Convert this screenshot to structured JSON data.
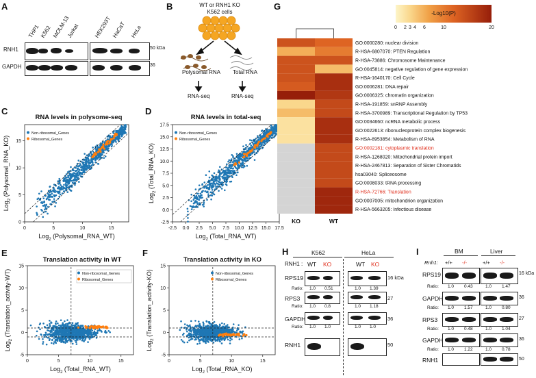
{
  "panels": {
    "A": {
      "letter": "A",
      "lanes": [
        "THP1",
        "K562",
        "MOLM-13",
        "Jurkat",
        "HEK293T",
        "HaCaT",
        "HeLa"
      ],
      "row1": "RNH1",
      "row2": "GAPDH",
      "mw1": "50 kDa",
      "mw2": "36"
    },
    "B": {
      "letter": "B",
      "line1": "WT or RNH1 KO",
      "line2": "K562 cells",
      "left": "Polysomal RNA",
      "right": "Total RNA",
      "seq": "RNA-seq"
    },
    "C": {
      "letter": "C",
      "title": "RNA levels in polysome-seq",
      "xlabel": "Log2 (Polysomal_RNA_WT)",
      "ylabel": "Log2 (Polysomal_RNA_KO)",
      "ticks": [
        "0",
        "5",
        "10",
        "15"
      ]
    },
    "D": {
      "letter": "D",
      "title": "RNA levels in total-seq",
      "xlabel": "Log2 (Total_RNA_WT)",
      "ylabel": "Log2 (Total_RNA_KO)",
      "ticks": [
        "-2.5",
        "0.0",
        "2.5",
        "5.0",
        "7.5",
        "10.0",
        "12.5",
        "15.0",
        "17.5"
      ]
    },
    "E": {
      "letter": "E",
      "title": "Translation activity in WT",
      "xlabel": "Log2 (Total_RNA_WT)",
      "ylabel": "Log2 (Translation_activity-WT)",
      "xticks": [
        "0",
        "5",
        "10",
        "15"
      ],
      "yticks": [
        "-5",
        "0",
        "5",
        "10",
        "15"
      ]
    },
    "F": {
      "letter": "F",
      "title": "Translation activity in KO",
      "xlabel": "Log2 (Total_RNA_KO)",
      "ylabel": "Log2 (Translation_activity-KO)",
      "xticks": [
        "0",
        "5",
        "10",
        "15"
      ],
      "yticks": [
        "-5",
        "0",
        "5",
        "10",
        "15"
      ]
    },
    "G": {
      "letter": "G",
      "legend_title": "-Log10(P)",
      "legend_ticks": [
        "0",
        "2",
        "3",
        "4",
        "6",
        "10",
        "20"
      ],
      "col_ko": "KO",
      "col_wt": "WT"
    },
    "H": {
      "letter": "H",
      "cell1": "K562",
      "cell2": "HeLa",
      "prefix": "RNH1 :",
      "wt": "WT",
      "ko": "KO",
      "proteins": [
        "RPS19",
        "RPS3",
        "GAPDH",
        "RNH1"
      ],
      "mw": [
        "16 kDa",
        "27",
        "36",
        "50"
      ],
      "ratio_label": "Ratio:",
      "ratios": [
        [
          "1.0",
          "0.51",
          "1.0",
          "1.39"
        ],
        [
          "1.0",
          "0.8",
          "1.0",
          "1.18"
        ],
        [
          "1.0",
          "1.0",
          "1.0",
          "1.0"
        ]
      ]
    },
    "I": {
      "letter": "I",
      "tissue1": "BM",
      "tissue2": "Liver",
      "genotype": "Rnh1:",
      "wt": "+/+",
      "ko": "-/-",
      "proteins": [
        "RPS19",
        "GAPDH",
        "RPS3",
        "GAPDH",
        "RNH1"
      ],
      "mw": [
        "16 kDa",
        "36",
        "27",
        "36",
        "50"
      ],
      "ratio_label": "Ratio:",
      "ratios": [
        [
          "1.0",
          "0.43",
          "1.0",
          "1.47"
        ],
        [
          "1.0",
          "1.57",
          "1.0",
          "0.80"
        ],
        [
          "1.0",
          "0.48",
          "1.0",
          "1.04"
        ],
        [
          "1.0",
          "1.22",
          "1.0",
          "0.78"
        ]
      ]
    }
  },
  "legend": {
    "non": "Non-ribosomal_Genes",
    "rib": "Ribosomal_Genes"
  },
  "colors": {
    "blue": "#1f77b4",
    "orange": "#ff7f0e",
    "red": "#e0301e"
  },
  "chart_data": [
    {
      "type": "heatmap",
      "title": "-Log10(P)",
      "columns": [
        "KO",
        "WT"
      ],
      "scale": [
        0,
        20
      ],
      "rows": [
        {
          "term": "GO:0000280: nuclear division",
          "ko": 14,
          "wt": 12,
          "highlight": false
        },
        {
          "term": "R-HSA-6807070: PTEN Regulation",
          "ko": 6,
          "wt": 10,
          "highlight": false
        },
        {
          "term": "R-HSA-73886: Chromosome Maintenance",
          "ko": 14,
          "wt": 14,
          "highlight": false
        },
        {
          "term": "GO:0045814: negative regulation of gene expression",
          "ko": 14,
          "wt": 5,
          "highlight": false
        },
        {
          "term": "R-HSA-1640170: Cell Cycle",
          "ko": 14,
          "wt": 18,
          "highlight": false
        },
        {
          "term": "GO:0006281: DNA repair",
          "ko": 13,
          "wt": 18,
          "highlight": false
        },
        {
          "term": "GO:0006325: chromatin organization",
          "ko": 20,
          "wt": 17,
          "highlight": false
        },
        {
          "term": "R-HSA-191859: snRNP Assembly",
          "ko": 3,
          "wt": 15,
          "highlight": false
        },
        {
          "term": "R-HSA-3700989: Transcriptional Regulation by TP53",
          "ko": 5,
          "wt": 15,
          "highlight": false
        },
        {
          "term": "GO:0034660: ncRNA metabolic process",
          "ko": 2,
          "wt": 18,
          "highlight": false
        },
        {
          "term": "GO:0022613: ribonucleoprotein complex biogenesis",
          "ko": 2,
          "wt": 18,
          "highlight": false
        },
        {
          "term": "R-HSA-8953854: Metabolism of RNA",
          "ko": 2,
          "wt": 18,
          "highlight": false
        },
        {
          "term": "GO:0002181: cytoplasmic translation",
          "ko": null,
          "wt": 15,
          "highlight": true
        },
        {
          "term": "R-HSA-1268020: Mitochondrial protein import",
          "ko": null,
          "wt": 15,
          "highlight": false
        },
        {
          "term": "R-HSA-2467813: Separation of Sister Chromatids",
          "ko": null,
          "wt": 15,
          "highlight": false
        },
        {
          "term": "hsa03040: Spliceosome",
          "ko": null,
          "wt": 15,
          "highlight": false
        },
        {
          "term": "GO:0008033: tRNA processing",
          "ko": null,
          "wt": 15,
          "highlight": false
        },
        {
          "term": "R-HSA-72766: Translation",
          "ko": null,
          "wt": 19,
          "highlight": true
        },
        {
          "term": "GO:0007005: mitochondrion organization",
          "ko": null,
          "wt": 19,
          "highlight": false
        },
        {
          "term": "R-HSA-5663205: Infectious disease",
          "ko": null,
          "wt": 19,
          "highlight": false
        }
      ]
    },
    {
      "type": "scatter",
      "panel": "C",
      "x_range": [
        0,
        18
      ],
      "y_range": [
        0,
        18
      ],
      "series": [
        "Non-ribosomal_Genes",
        "Ribosomal_Genes"
      ]
    },
    {
      "type": "scatter",
      "panel": "D",
      "x_range": [
        -2.5,
        17.5
      ],
      "y_range": [
        -2.5,
        17.5
      ],
      "series": [
        "Non-ribosomal_Genes",
        "Ribosomal_Genes"
      ]
    },
    {
      "type": "scatter",
      "panel": "E",
      "x_range": [
        0,
        17
      ],
      "y_range": [
        -5,
        15
      ],
      "series": [
        "Non-ribosomal_Genes",
        "Ribosomal_Genes"
      ]
    },
    {
      "type": "scatter",
      "panel": "F",
      "x_range": [
        0,
        17
      ],
      "y_range": [
        -5,
        15
      ],
      "series": [
        "Non-ribosomal_Genes",
        "Ribosomal_Genes"
      ]
    }
  ]
}
